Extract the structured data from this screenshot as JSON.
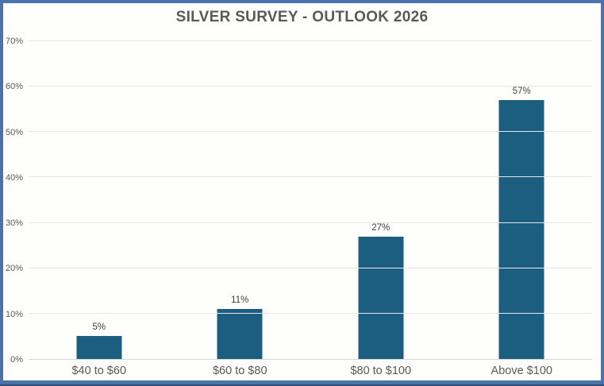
{
  "window": {
    "border_color": "#4a73ab",
    "border_bottom_edge_color": "#2e4c78",
    "background": "#fefefd"
  },
  "chart_data": {
    "type": "bar",
    "title": "SILVER SURVEY - OUTLOOK 2026",
    "categories": [
      "$40 to $60",
      "$60 to $80",
      "$80 to $100",
      "Above $100"
    ],
    "values": [
      5,
      11,
      27,
      57
    ],
    "value_labels": [
      "5%",
      "11%",
      "27%",
      "57%"
    ],
    "y_ticks": [
      0,
      10,
      20,
      30,
      40,
      50,
      60,
      70
    ],
    "y_tick_labels": [
      "0%",
      "10%",
      "20%",
      "30%",
      "40%",
      "50%",
      "60%",
      "70%"
    ],
    "ylim": [
      0,
      70
    ],
    "xlabel": "",
    "ylabel": "",
    "grid": true,
    "legend": false,
    "bar_color": "#1b5e7f",
    "gridline_color": "#e7e7e7",
    "axis_line_color": "#d6d6d6",
    "title_color": "#595959",
    "tick_label_color": "#595959",
    "value_label_color": "#404040"
  }
}
